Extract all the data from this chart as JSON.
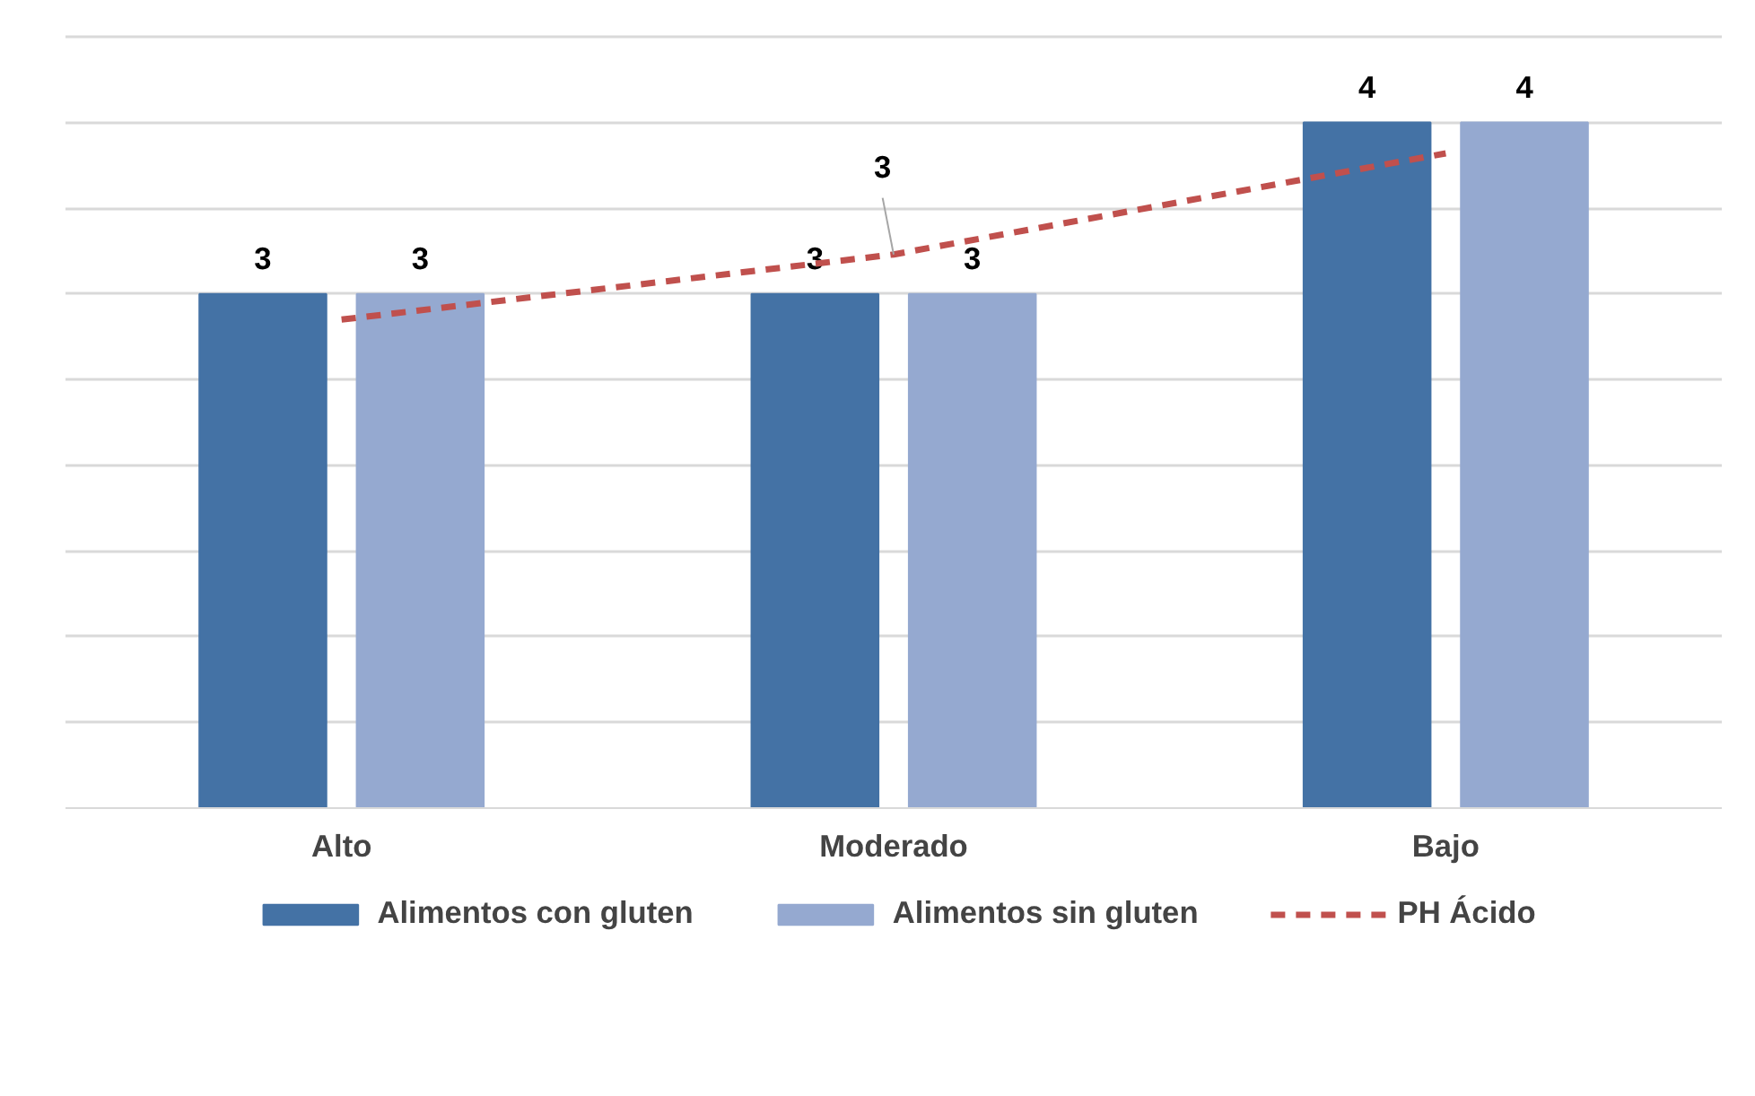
{
  "chart_data": {
    "type": "bar",
    "categories": [
      "Alto",
      "Moderado",
      "Bajo"
    ],
    "series": [
      {
        "name": "Alimentos con gluten",
        "color": "#4472a5",
        "values": [
          3,
          3,
          4
        ]
      },
      {
        "name": "Alimentos sin gluten",
        "color": "#95a9d0",
        "values": [
          3,
          3,
          4
        ]
      },
      {
        "name": "PH Ácido",
        "type": "line",
        "color": "#c0504d",
        "line_style": "dashed",
        "values": [
          2.85,
          3.23,
          3.82
        ],
        "value_labels": [
          null,
          "3",
          null
        ]
      }
    ],
    "ylim": [
      0,
      4.5
    ],
    "yticks": [
      {
        "value": 0,
        "label": null
      },
      {
        "value": 0.5,
        "label": null
      },
      {
        "value": 1,
        "label": null
      },
      {
        "value": 1.5,
        "label": null
      },
      {
        "value": 2,
        "label": null
      },
      {
        "value": 2.5,
        "label": null
      },
      {
        "value": 3,
        "label": null
      },
      {
        "value": 3.5,
        "label": null
      },
      {
        "value": 4,
        "label": null
      },
      {
        "value": 4.5,
        "label": null
      }
    ],
    "tick_labels": "x",
    "grid": "y",
    "legend": "bottom",
    "data_labels": true
  }
}
